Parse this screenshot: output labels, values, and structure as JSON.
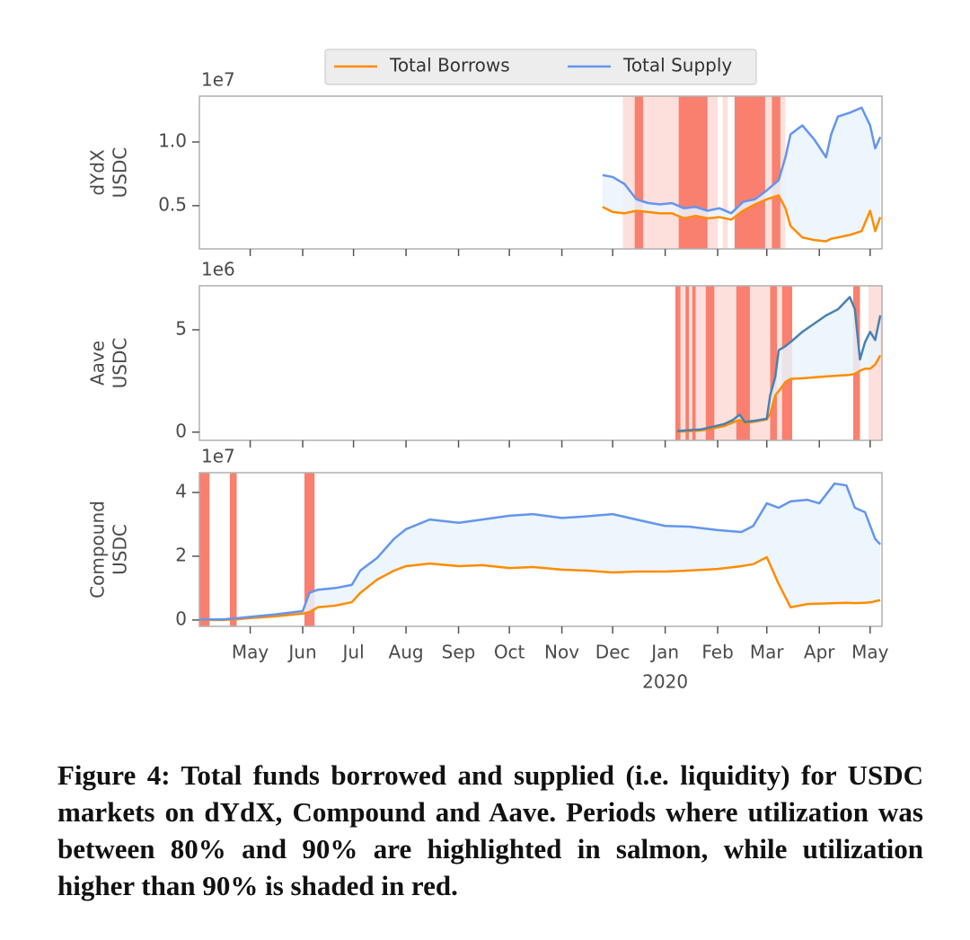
{
  "chart_data": [
    {
      "type": "line",
      "offset_label": "1e7",
      "ylabel": [
        "dYdX",
        "USDC"
      ],
      "xlim": [
        "2019-04-01",
        "2020-05-08"
      ],
      "ylim": [
        0.16,
        1.36
      ],
      "yticks": [
        0.5,
        {
          "value": 1,
          "label": "1.0"
        }
      ],
      "x": [
        "2019-11-25",
        "2019-12-01",
        "2019-12-08",
        "2019-12-15",
        "2019-12-22",
        "2019-12-29",
        "2020-01-05",
        "2020-01-12",
        "2020-01-19",
        "2020-01-26",
        "2020-02-02",
        "2020-02-09",
        "2020-02-16",
        "2020-02-23",
        "2020-03-01",
        "2020-03-08",
        "2020-03-12",
        "2020-03-15",
        "2020-03-22",
        "2020-03-29",
        "2020-04-05",
        "2020-04-08",
        "2020-04-12",
        "2020-04-19",
        "2020-04-26",
        "2020-05-01",
        "2020-05-04",
        "2020-05-07"
      ],
      "series": [
        {
          "name": "Total Borrows",
          "color": "#ff8c00",
          "values": [
            0.49,
            0.45,
            0.44,
            0.46,
            0.45,
            0.44,
            0.44,
            0.4,
            0.42,
            0.4,
            0.41,
            0.39,
            0.46,
            0.51,
            0.55,
            0.58,
            0.48,
            0.34,
            0.25,
            0.23,
            0.22,
            0.24,
            0.25,
            0.27,
            0.3,
            0.46,
            0.3,
            0.41
          ]
        },
        {
          "name": "Total Supply",
          "color": "#6495ed",
          "values": [
            0.74,
            0.725,
            0.67,
            0.55,
            0.52,
            0.51,
            0.52,
            0.48,
            0.49,
            0.46,
            0.48,
            0.44,
            0.53,
            0.55,
            0.62,
            0.7,
            0.88,
            1.06,
            1.13,
            1.02,
            0.88,
            1.06,
            1.2,
            1.23,
            1.27,
            1.13,
            0.95,
            1.04
          ]
        }
      ],
      "fill_color": "#eaf3fd",
      "highlight_spans": [
        {
          "start": "2019-12-07",
          "end": "2020-02-01",
          "color": "#fde0dc"
        },
        {
          "start": "2020-02-04",
          "end": "2020-02-07",
          "color": "#fde0dc"
        },
        {
          "start": "2020-02-11",
          "end": "2020-03-12",
          "color": "#fde0dc"
        },
        {
          "start": "2019-12-14",
          "end": "2019-12-19",
          "color": "#f9806f"
        },
        {
          "start": "2020-01-09",
          "end": "2020-01-26",
          "color": "#f9806f"
        },
        {
          "start": "2020-02-11",
          "end": "2020-02-29",
          "color": "#f9806f"
        },
        {
          "start": "2020-03-04",
          "end": "2020-03-09",
          "color": "#f9806f"
        }
      ]
    },
    {
      "type": "line",
      "offset_label": "1e6",
      "ylabel": [
        "Aave",
        "USDC"
      ],
      "xlim": [
        "2019-04-01",
        "2020-05-08"
      ],
      "ylim": [
        -0.4,
        7.15
      ],
      "yticks": [
        0,
        5
      ],
      "x": [
        "2020-01-08",
        "2020-01-15",
        "2020-01-22",
        "2020-01-29",
        "2020-02-05",
        "2020-02-10",
        "2020-02-14",
        "2020-02-17",
        "2020-02-24",
        "2020-03-01",
        "2020-03-03",
        "2020-03-06",
        "2020-03-08",
        "2020-03-12",
        "2020-03-15",
        "2020-03-22",
        "2020-03-29",
        "2020-04-05",
        "2020-04-12",
        "2020-04-19",
        "2020-04-22",
        "2020-04-25",
        "2020-04-28",
        "2020-05-01",
        "2020-05-04",
        "2020-05-07"
      ],
      "series": [
        {
          "color": "#ff8c00",
          "values": [
            0.02,
            0.05,
            0.08,
            0.18,
            0.3,
            0.48,
            0.6,
            0.44,
            0.53,
            0.62,
            0.9,
            1.8,
            2.0,
            2.45,
            2.6,
            2.63,
            2.68,
            2.72,
            2.76,
            2.8,
            2.85,
            3.0,
            3.1,
            3.1,
            3.3,
            3.75
          ]
        },
        {
          "color": "#4a80b0",
          "values": [
            0.05,
            0.1,
            0.13,
            0.26,
            0.4,
            0.6,
            0.85,
            0.5,
            0.57,
            0.66,
            1.8,
            2.7,
            4.0,
            4.2,
            4.4,
            4.9,
            5.3,
            5.7,
            6.0,
            6.6,
            6.0,
            3.55,
            4.4,
            4.9,
            4.5,
            5.7
          ]
        }
      ],
      "fill_color": "#eaf3fd",
      "highlight_spans": [
        {
          "start": "2020-01-07",
          "end": "2020-03-16",
          "color": "#fde0dc"
        },
        {
          "start": "2020-04-30",
          "end": "2020-05-08",
          "color": "#fde0dc"
        },
        {
          "start": "2020-01-07",
          "end": "2020-01-10",
          "color": "#f9806f"
        },
        {
          "start": "2020-01-13",
          "end": "2020-01-15",
          "color": "#f9806f"
        },
        {
          "start": "2020-01-17",
          "end": "2020-01-19",
          "color": "#f9806f"
        },
        {
          "start": "2020-01-25",
          "end": "2020-01-30",
          "color": "#f9806f"
        },
        {
          "start": "2020-02-12",
          "end": "2020-02-20",
          "color": "#f9806f"
        },
        {
          "start": "2020-03-03",
          "end": "2020-03-07",
          "color": "#f9806f"
        },
        {
          "start": "2020-03-10",
          "end": "2020-03-16",
          "color": "#f9806f"
        },
        {
          "start": "2020-04-21",
          "end": "2020-04-25",
          "color": "#f9806f"
        }
      ]
    },
    {
      "type": "line",
      "offset_label": "1e7",
      "ylabel": [
        "Compound",
        "USDC"
      ],
      "xlim": [
        "2019-04-01",
        "2020-05-08"
      ],
      "ylim": [
        -0.2,
        4.62
      ],
      "yticks": [
        0,
        2,
        4
      ],
      "xticks": [
        {
          "value": "2019-05-01",
          "label": "May"
        },
        {
          "value": "2019-06-01",
          "label": "Jun"
        },
        {
          "value": "2019-07-01",
          "label": "Jul"
        },
        {
          "value": "2019-08-01",
          "label": "Aug"
        },
        {
          "value": "2019-09-01",
          "label": "Sep"
        },
        {
          "value": "2019-10-01",
          "label": "Oct"
        },
        {
          "value": "2019-11-01",
          "label": "Nov"
        },
        {
          "value": "2019-12-01",
          "label": "Dec"
        },
        {
          "value": "2020-01-01",
          "label": "Jan"
        },
        {
          "value": "2020-02-01",
          "label": "Feb"
        },
        {
          "value": "2020-03-01",
          "label": "Mar"
        },
        {
          "value": "2020-04-01",
          "label": "Apr"
        },
        {
          "value": "2020-05-01",
          "label": "May"
        }
      ],
      "x_year_label": "2020",
      "x": [
        "2019-04-01",
        "2019-04-15",
        "2019-04-22",
        "2019-05-01",
        "2019-05-15",
        "2019-06-01",
        "2019-06-05",
        "2019-06-10",
        "2019-06-20",
        "2019-06-30",
        "2019-07-05",
        "2019-07-15",
        "2019-07-25",
        "2019-08-01",
        "2019-08-15",
        "2019-09-01",
        "2019-09-15",
        "2019-10-01",
        "2019-10-15",
        "2019-11-01",
        "2019-11-15",
        "2019-12-01",
        "2019-12-15",
        "2020-01-01",
        "2020-01-15",
        "2020-02-01",
        "2020-02-15",
        "2020-02-22",
        "2020-03-01",
        "2020-03-08",
        "2020-03-15",
        "2020-03-25",
        "2020-04-01",
        "2020-04-10",
        "2020-04-17",
        "2020-04-22",
        "2020-04-28",
        "2020-05-02",
        "2020-05-04",
        "2020-05-07"
      ],
      "series": [
        {
          "color": "#ff8c00",
          "values": [
            0,
            0,
            0.02,
            0.06,
            0.11,
            0.2,
            0.25,
            0.4,
            0.45,
            0.56,
            0.85,
            1.27,
            1.55,
            1.69,
            1.77,
            1.69,
            1.72,
            1.63,
            1.66,
            1.58,
            1.55,
            1.49,
            1.52,
            1.52,
            1.55,
            1.6,
            1.69,
            1.75,
            1.97,
            1.13,
            0.4,
            0.5,
            0.51,
            0.53,
            0.54,
            0.53,
            0.54,
            0.56,
            0.59,
            0.62
          ]
        },
        {
          "color": "#6495ed",
          "values": [
            0.02,
            0.02,
            0.05,
            0.1,
            0.17,
            0.28,
            0.85,
            0.95,
            1.0,
            1.1,
            1.55,
            1.95,
            2.55,
            2.85,
            3.15,
            3.05,
            3.15,
            3.27,
            3.32,
            3.2,
            3.25,
            3.32,
            3.15,
            2.95,
            2.93,
            2.82,
            2.76,
            2.95,
            3.66,
            3.52,
            3.72,
            3.77,
            3.66,
            4.28,
            4.22,
            3.52,
            3.38,
            2.82,
            2.54,
            2.37
          ]
        }
      ],
      "fill_color": "#eaf3fd",
      "highlight_spans": [
        {
          "start": "2019-04-01",
          "end": "2019-04-07",
          "color": "#f9806f"
        },
        {
          "start": "2019-04-19",
          "end": "2019-04-23",
          "color": "#f9806f"
        },
        {
          "start": "2019-06-02",
          "end": "2019-06-08",
          "color": "#f9806f"
        }
      ]
    }
  ],
  "caption": "Figure 4: Total funds borrowed and supplied (i.e. liquidity) for USDC markets on dYdX, Compound and Aave. Periods where utilization was between 80% and 90% are highlighted in salmon, while utilization higher than 90% is shaded in red."
}
